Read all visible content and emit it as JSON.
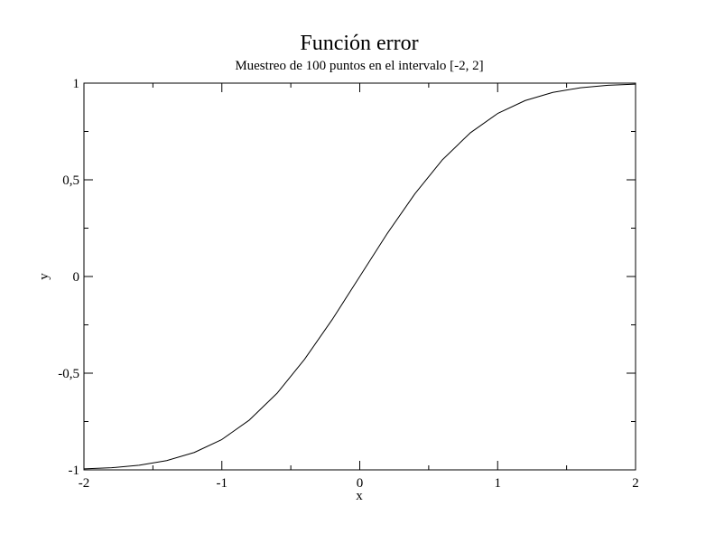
{
  "chart_data": {
    "type": "line",
    "title": "Función error",
    "subtitle": "Muestreo de 100 puntos en el intervalo [-2, 2]",
    "xlabel": "x",
    "ylabel": "y",
    "xlim": [
      -2,
      2
    ],
    "ylim": [
      -1,
      1
    ],
    "grid": false,
    "x_ticks": [
      {
        "value": -2,
        "label": "-2"
      },
      {
        "value": -1,
        "label": "-1"
      },
      {
        "value": 0,
        "label": "0"
      },
      {
        "value": 1,
        "label": "1"
      },
      {
        "value": 2,
        "label": "2"
      }
    ],
    "y_ticks": [
      {
        "value": -1,
        "label": "-1"
      },
      {
        "value": -0.5,
        "label": "-0,5"
      },
      {
        "value": 0,
        "label": "0"
      },
      {
        "value": 0.5,
        "label": "0,5"
      },
      {
        "value": 1,
        "label": "1"
      }
    ],
    "series": [
      {
        "color": "#000000",
        "x": [
          -2.0,
          -1.8,
          -1.6,
          -1.4,
          -1.2,
          -1.0,
          -0.8,
          -0.6,
          -0.4,
          -0.2,
          0.0,
          0.2,
          0.4,
          0.6,
          0.8,
          1.0,
          1.2,
          1.4,
          1.6,
          1.8,
          2.0
        ],
        "y": [
          -0.995,
          -0.989,
          -0.976,
          -0.952,
          -0.91,
          -0.843,
          -0.742,
          -0.604,
          -0.428,
          -0.223,
          0.0,
          0.223,
          0.428,
          0.604,
          0.742,
          0.843,
          0.91,
          0.952,
          0.976,
          0.989,
          0.995
        ]
      }
    ]
  }
}
